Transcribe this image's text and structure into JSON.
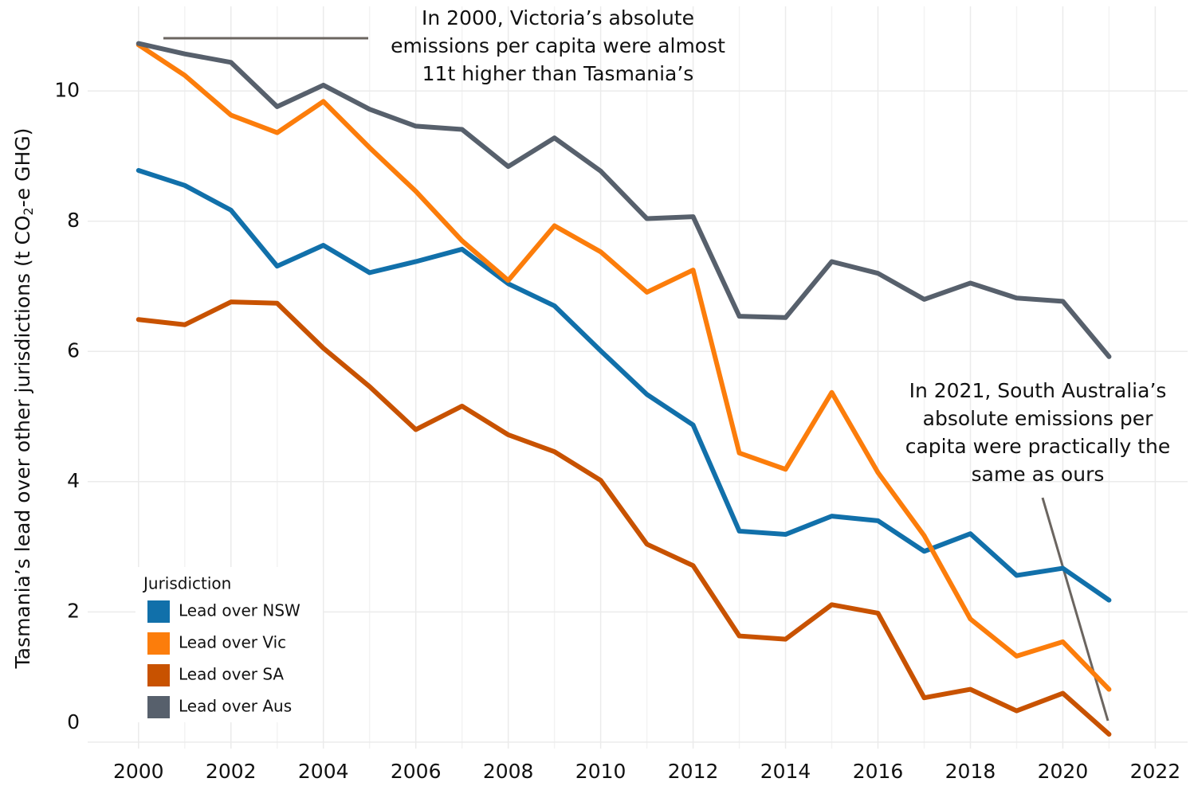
{
  "chart_data": {
    "type": "line",
    "ylabel": [
      "Tasmania’s lead over other jurisdictions (t CO",
      "2",
      "-e GHG)"
    ],
    "x": [
      2000,
      2001,
      2002,
      2003,
      2004,
      2005,
      2006,
      2007,
      2008,
      2009,
      2010,
      2011,
      2012,
      2013,
      2014,
      2015,
      2016,
      2017,
      2018,
      2019,
      2020,
      2021
    ],
    "series": [
      {
        "name": "Lead over NSW",
        "color": "#1170aa",
        "values": [
          8.78,
          8.55,
          8.17,
          7.31,
          7.63,
          7.21,
          7.38,
          7.57,
          7.04,
          6.7,
          6.01,
          5.34,
          4.87,
          3.24,
          3.19,
          3.47,
          3.4,
          2.93,
          3.2,
          2.56,
          2.67,
          2.18
        ]
      },
      {
        "name": "Lead over Vic",
        "color": "#fc7d0b",
        "values": [
          10.71,
          10.24,
          9.63,
          9.36,
          9.84,
          9.13,
          8.46,
          7.7,
          7.09,
          7.93,
          7.53,
          6.91,
          7.25,
          4.44,
          4.19,
          5.37,
          4.14,
          3.17,
          1.89,
          1.32,
          1.54,
          0.81
        ]
      },
      {
        "name": "Lead over SA",
        "color": "#c85200",
        "values": [
          6.49,
          6.41,
          6.76,
          6.74,
          6.05,
          5.46,
          4.8,
          5.16,
          4.72,
          4.46,
          4.02,
          3.04,
          2.71,
          1.63,
          1.58,
          2.11,
          1.98,
          0.68,
          0.81,
          0.48,
          0.75,
          0.12
        ]
      },
      {
        "name": "Lead over Aus",
        "color": "#57606c",
        "values": [
          10.73,
          10.57,
          10.44,
          9.76,
          10.09,
          9.72,
          9.46,
          9.41,
          8.84,
          9.28,
          8.77,
          8.04,
          8.07,
          6.54,
          6.52,
          7.38,
          7.2,
          6.8,
          7.05,
          6.82,
          6.77,
          5.92
        ]
      }
    ],
    "xlim": [
      1998.9,
      2022.7
    ],
    "xticks": [
      2000,
      2002,
      2004,
      2006,
      2008,
      2010,
      2012,
      2014,
      2016,
      2018,
      2020,
      2022
    ],
    "ylim": [
      -0.1,
      11.3
    ],
    "yticks": [
      0,
      2,
      4,
      6,
      8,
      10
    ],
    "grid": true,
    "legend": {
      "title": "Jurisdiction",
      "position": "bottom-left"
    },
    "annotations": [
      {
        "lines": [
          "In 2000, Victoria’s absolute",
          "emissions per capita were almost",
          "11t higher than Tasmania’s"
        ]
      },
      {
        "lines": [
          "In 2021, South Australia’s",
          "absolute emissions per",
          "capita were practically the",
          "same as ours"
        ]
      }
    ]
  }
}
